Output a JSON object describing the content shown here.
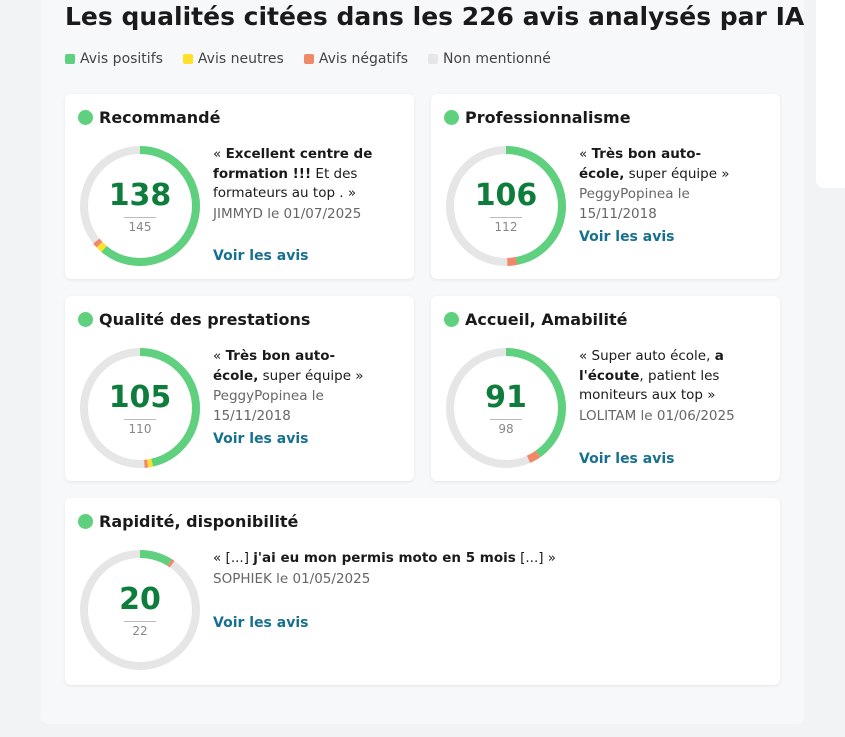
{
  "title": "Les qualités citées dans les 226 avis analysés par IA",
  "legend": [
    {
      "label": "Avis positifs",
      "color": "#5fd07e"
    },
    {
      "label": "Avis neutres",
      "color": "#ffe02a"
    },
    {
      "label": "Avis négatifs",
      "color": "#f0886a"
    },
    {
      "label": "Non mentionné",
      "color": "#e6e6e6"
    }
  ],
  "colors": {
    "positive": "#5fd07e",
    "neutral": "#ffe02a",
    "negative": "#f0886a",
    "empty": "#e6e6e6",
    "count": "#0e7c3a",
    "link": "#16708f"
  },
  "cards": [
    {
      "name": "Recommandé",
      "count": "138",
      "total": "145",
      "positive": 138,
      "neutral": 4,
      "negative": 3,
      "out_of": 226,
      "quote_parts": [
        [
          "« ",
          false
        ],
        [
          "Excellent centre de formation !!!",
          true
        ],
        [
          " Et des formateurs au top . »",
          false
        ]
      ],
      "author": "JIMMYD le 01/07/2025",
      "link": "Voir les avis"
    },
    {
      "name": "Professionnalisme",
      "count": "106",
      "total": "112",
      "positive": 106,
      "neutral": 0,
      "negative": 6,
      "out_of": 226,
      "quote_parts": [
        [
          "« ",
          false
        ],
        [
          "Très bon auto-école,",
          true
        ],
        [
          " super équipe »",
          false
        ]
      ],
      "author": "PeggyPopinea le 15/11/2018",
      "link": "Voir les avis"
    },
    {
      "name": "Qualité des prestations",
      "count": "105",
      "total": "110",
      "positive": 105,
      "neutral": 3,
      "negative": 2,
      "out_of": 226,
      "quote_parts": [
        [
          "« ",
          false
        ],
        [
          "Très bon auto-école,",
          true
        ],
        [
          " super équipe »",
          false
        ]
      ],
      "author": "PeggyPopinea le 15/11/2018",
      "link": "Voir les avis"
    },
    {
      "name": "Accueil, Amabilité",
      "count": "91",
      "total": "98",
      "positive": 91,
      "neutral": 0,
      "negative": 7,
      "out_of": 226,
      "quote_parts": [
        [
          "« Super auto école, ",
          false
        ],
        [
          "a l'écoute",
          true
        ],
        [
          ", patient les moniteurs aux top »",
          false
        ]
      ],
      "author": "LOLITAM le 01/06/2025",
      "link": "Voir les avis"
    },
    {
      "name": "Rapidité, disponibilité",
      "count": "20",
      "total": "22",
      "positive": 20,
      "neutral": 0,
      "negative": 2,
      "out_of": 226,
      "quote_parts": [
        [
          "« [...] ",
          false
        ],
        [
          "j'ai eu mon permis moto en 5 mois",
          true
        ],
        [
          " [...] »",
          false
        ]
      ],
      "author": "SOPHIEK le 01/05/2025",
      "link": "Voir les avis"
    }
  ]
}
